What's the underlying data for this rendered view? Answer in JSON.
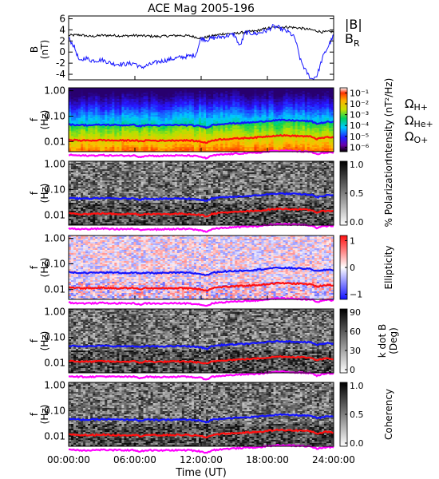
{
  "title": "ACE Mag 2005-196",
  "colors": {
    "black": "#000000",
    "blue": "#1414ff",
    "red": "#ff1010",
    "magenta": "#ff00ff"
  },
  "xaxis": {
    "label": "Time (UT)",
    "ticks": [
      "00:00:00",
      "06:00:00",
      "12:00:00",
      "18:00:00",
      "24:00:00"
    ],
    "tick_hours": [
      0,
      6,
      12,
      18,
      24
    ],
    "range_hours": [
      0,
      24
    ]
  },
  "chart_data": [
    {
      "type": "line",
      "panel": "b-field",
      "ylabel": "B",
      "yunit": "(nT)",
      "ylim": [
        -5,
        6.5
      ],
      "yticks": [
        -4,
        -2,
        0,
        2,
        4,
        6
      ],
      "legend": [
        {
          "label": "|B|",
          "color": "#000000"
        },
        {
          "label_main": "B",
          "label_sub": "R",
          "color": "#1414ff"
        }
      ],
      "series": [
        {
          "name": "|B|",
          "color": "#000000",
          "x": [
            0,
            1,
            2,
            3,
            4,
            5,
            6,
            7,
            8,
            9,
            10,
            11,
            12,
            13,
            14,
            15,
            16,
            17,
            18,
            19,
            20,
            21,
            22,
            23,
            24
          ],
          "values": [
            3.0,
            3.1,
            2.8,
            3.0,
            3.0,
            2.9,
            3.0,
            2.9,
            2.8,
            2.9,
            3.0,
            2.9,
            2.5,
            2.9,
            3.3,
            3.3,
            3.6,
            3.8,
            4.3,
            4.5,
            4.5,
            4.3,
            4.0,
            3.6,
            3.7
          ]
        },
        {
          "name": "B_R",
          "color": "#1414ff",
          "x": [
            0,
            0.5,
            1,
            1.5,
            2,
            2.5,
            3,
            4,
            5,
            6,
            6.5,
            7,
            8,
            9,
            10,
            11,
            11.5,
            12,
            12.5,
            13,
            14,
            15,
            15.5,
            16,
            17,
            18,
            18.5,
            19,
            20,
            20.5,
            21,
            21.5,
            22,
            22.5,
            23,
            23.5,
            24
          ],
          "values": [
            2.5,
            1.0,
            -1.8,
            -1.0,
            -1.5,
            -1.5,
            -1.4,
            -2.1,
            -2.2,
            -2.0,
            -2.8,
            -2.5,
            -1.8,
            -1.4,
            -1.0,
            -0.7,
            -0.5,
            2.5,
            2.2,
            2.5,
            2.8,
            3.2,
            1.0,
            3.5,
            3.3,
            3.9,
            4.6,
            4.4,
            3.5,
            2.5,
            -1.5,
            -3.5,
            -4.9,
            -4.2,
            -1.0,
            1.0,
            3.0
          ]
        }
      ]
    },
    {
      "type": "heatmap",
      "panel": "intensity",
      "ylabel": "f",
      "yunit": "(Hz)",
      "yscale": "log",
      "ylim": [
        0.004,
        1.3
      ],
      "yticks": [
        "1.00",
        "0.10",
        "0.01"
      ],
      "colorbar": {
        "label": "Intensity (nT²/Hz)",
        "scale": "log",
        "ticks": [
          "10⁻¹",
          "10⁻²",
          "10⁻³",
          "10⁻⁴",
          "10⁻⁵",
          "10⁻⁶"
        ]
      },
      "legend": [
        {
          "symbol": "Ω",
          "sub": "H+",
          "color": "#1414ff"
        },
        {
          "symbol": "Ω",
          "sub": "He+",
          "color": "#ff1010"
        },
        {
          "symbol": "Ω",
          "sub": "O+",
          "color": "#ff00ff"
        }
      ]
    },
    {
      "type": "heatmap",
      "panel": "polarization",
      "ylabel": "f",
      "yunit": "(Hz)",
      "yscale": "log",
      "yticks": [
        "1.00",
        "0.10",
        "0.01"
      ],
      "colorbar": {
        "label": "% Polarization",
        "ticks": [
          "1.0",
          "0.5",
          "0.0"
        ]
      }
    },
    {
      "type": "heatmap",
      "panel": "ellipticity",
      "ylabel": "f",
      "yunit": "(Hz)",
      "yscale": "log",
      "yticks": [
        "1.00",
        "0.10",
        "0.01"
      ],
      "colorbar": {
        "label": "Ellipticity",
        "ticks": [
          "1",
          "0",
          "−1"
        ]
      }
    },
    {
      "type": "heatmap",
      "panel": "kdotb",
      "ylabel": "f",
      "yunit": "(Hz)",
      "yscale": "log",
      "yticks": [
        "1.00",
        "0.10",
        "0.01"
      ],
      "colorbar": {
        "label": "k dot B",
        "unit": "(Deg)",
        "ticks": [
          "90",
          "60",
          "30",
          "0"
        ]
      }
    },
    {
      "type": "heatmap",
      "panel": "coherency",
      "ylabel": "f",
      "yunit": "(Hz)",
      "yscale": "log",
      "yticks": [
        "1.00",
        "0.10",
        "0.01"
      ],
      "colorbar": {
        "label": "Coherency",
        "ticks": [
          "1.0",
          "0.5",
          "0.0"
        ]
      }
    }
  ],
  "gyrofrequency": {
    "unit": "Hz",
    "x": [
      0,
      1,
      2,
      3,
      4,
      5,
      6,
      6.5,
      7,
      7.5,
      8,
      9,
      10,
      11,
      12,
      12.5,
      13,
      14,
      15,
      16,
      17,
      18,
      19,
      20,
      21,
      22,
      22.5,
      23,
      23.5,
      24
    ],
    "H": [
      0.047,
      0.045,
      0.044,
      0.046,
      0.045,
      0.044,
      0.045,
      0.04,
      0.045,
      0.044,
      0.043,
      0.044,
      0.045,
      0.044,
      0.04,
      0.035,
      0.045,
      0.05,
      0.052,
      0.055,
      0.058,
      0.065,
      0.07,
      0.068,
      0.066,
      0.062,
      0.05,
      0.055,
      0.06,
      0.057
    ],
    "He": [
      0.012,
      0.011,
      0.011,
      0.0115,
      0.011,
      0.011,
      0.0112,
      0.01,
      0.0113,
      0.011,
      0.0108,
      0.011,
      0.0112,
      0.011,
      0.01,
      0.0088,
      0.0112,
      0.0125,
      0.013,
      0.0138,
      0.0145,
      0.016,
      0.0175,
      0.017,
      0.0165,
      0.0155,
      0.0125,
      0.014,
      0.015,
      0.014
    ],
    "O": [
      0.003,
      0.0028,
      0.0028,
      0.0029,
      0.0028,
      0.0028,
      0.0028,
      0.0025,
      0.0028,
      0.0028,
      0.0027,
      0.0028,
      0.0028,
      0.0028,
      0.0025,
      0.0022,
      0.0028,
      0.0031,
      0.0033,
      0.0035,
      0.0036,
      0.004,
      0.0044,
      0.0043,
      0.0041,
      0.0039,
      0.0031,
      0.0035,
      0.0038,
      0.0036
    ]
  }
}
